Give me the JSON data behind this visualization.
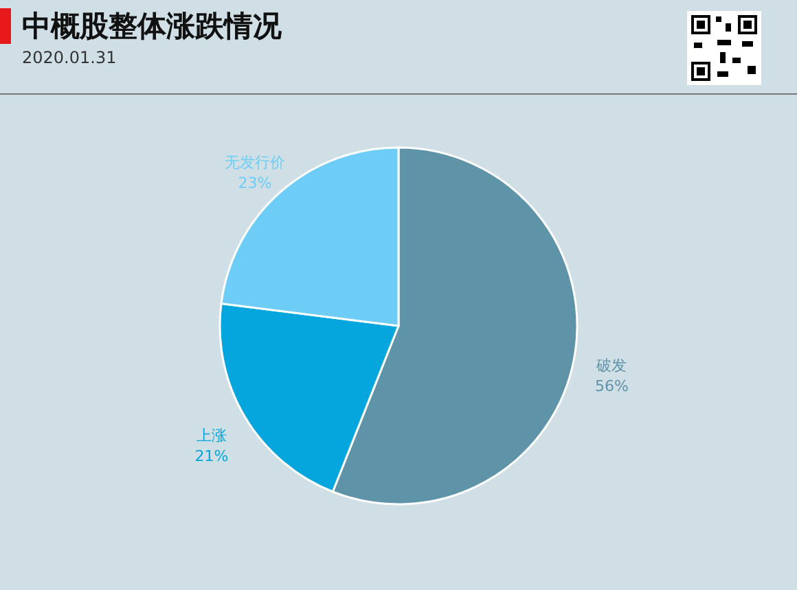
{
  "chart_data": {
    "type": "pie",
    "title": "中概股整体涨跌情况",
    "subtitle": "2020.01.31",
    "categories": [
      "破发",
      "上涨",
      "无发行价"
    ],
    "values": [
      56,
      21,
      23
    ],
    "colors": [
      "#5e93a8",
      "#05a6de",
      "#6dcdf6"
    ],
    "value_labels": [
      "56%",
      "21%",
      "23%"
    ]
  }
}
